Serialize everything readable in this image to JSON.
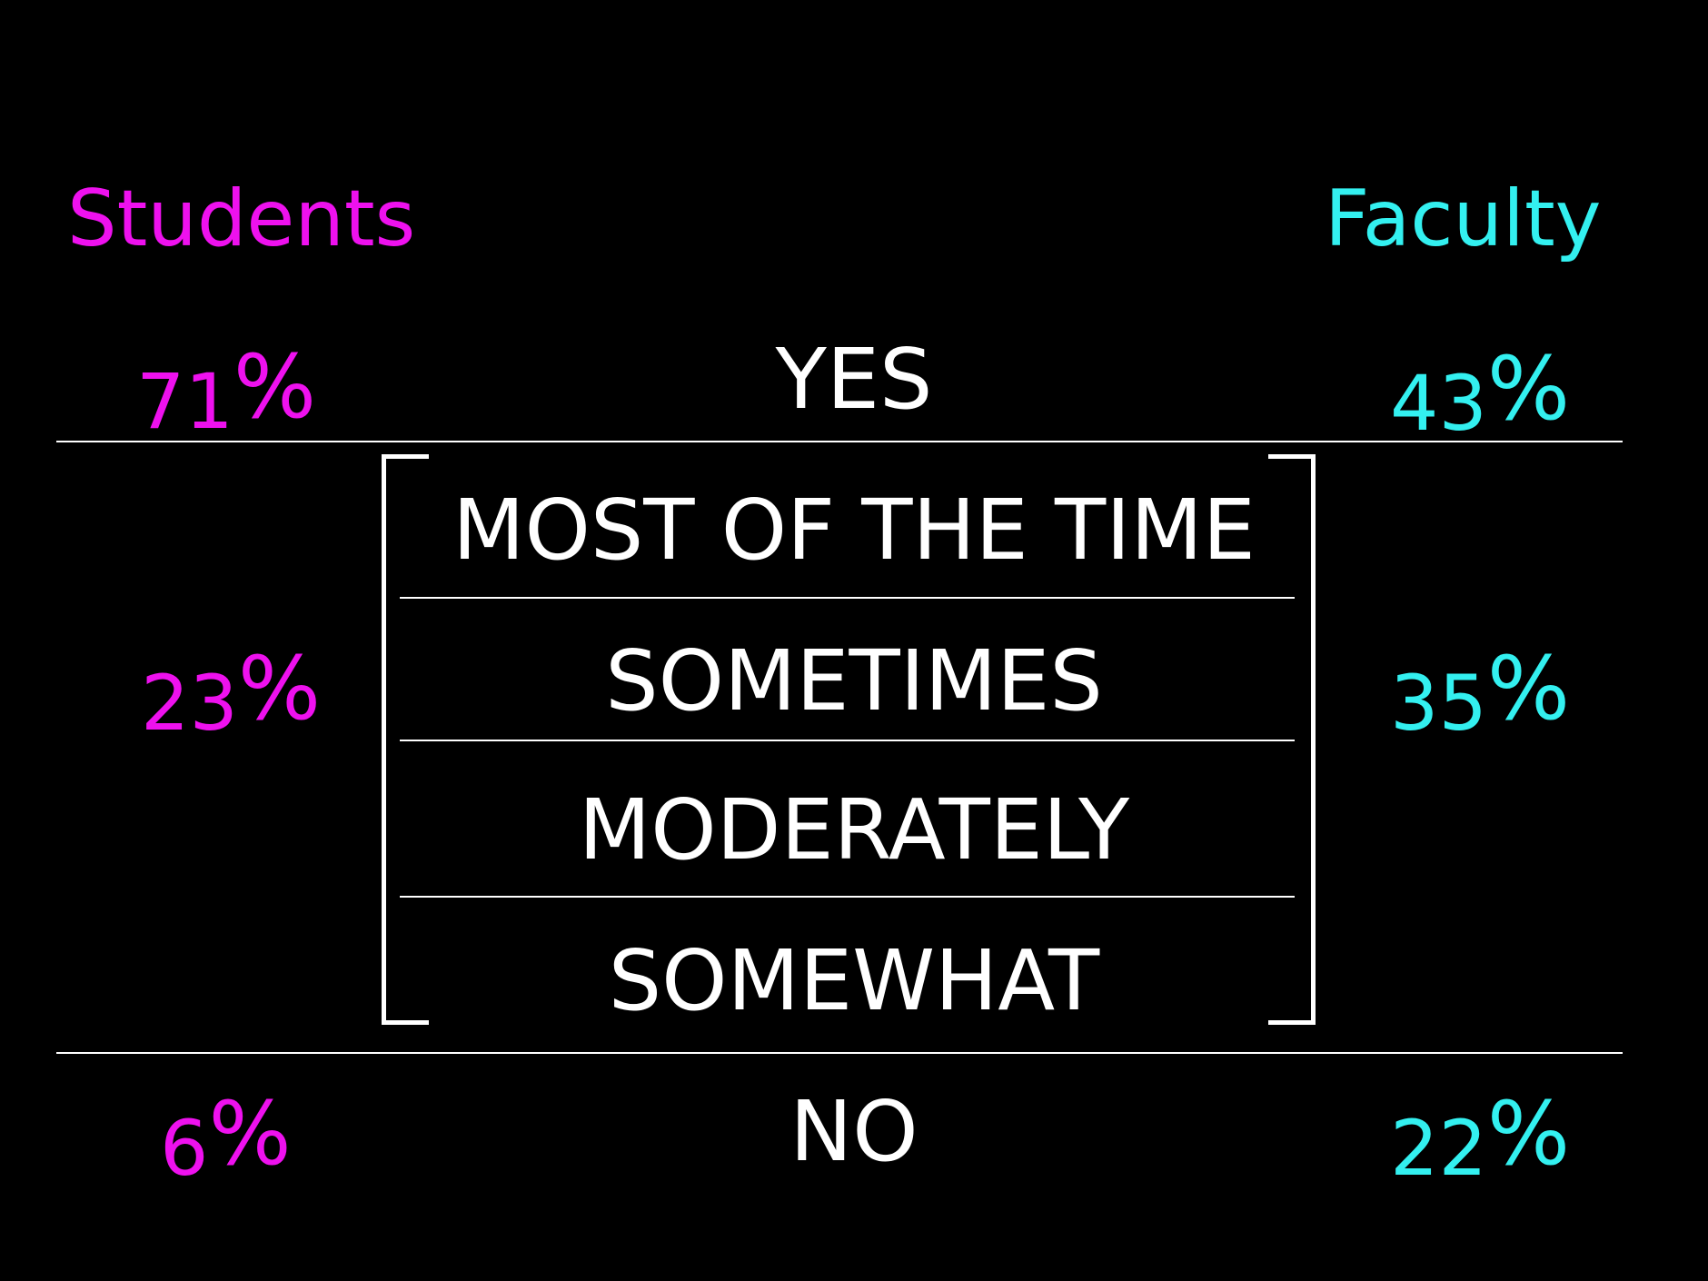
{
  "colors": {
    "background": "#000000",
    "students": "#ee11ee",
    "faculty": "#33f0f0",
    "answer": "#ffffff"
  },
  "headers": {
    "students": "Students",
    "faculty": "Faculty"
  },
  "rows": {
    "yes": {
      "label": "YES",
      "students_value": "71",
      "faculty_value": "43"
    },
    "middle": {
      "labels": [
        "MOST OF THE TIME",
        "SOMETIMES",
        "MODERATELY",
        "SOMEWHAT"
      ],
      "students_value": "23",
      "faculty_value": "35"
    },
    "no": {
      "label": "NO",
      "students_value": "6",
      "faculty_value": "22"
    }
  },
  "percent_symbol": "%"
}
